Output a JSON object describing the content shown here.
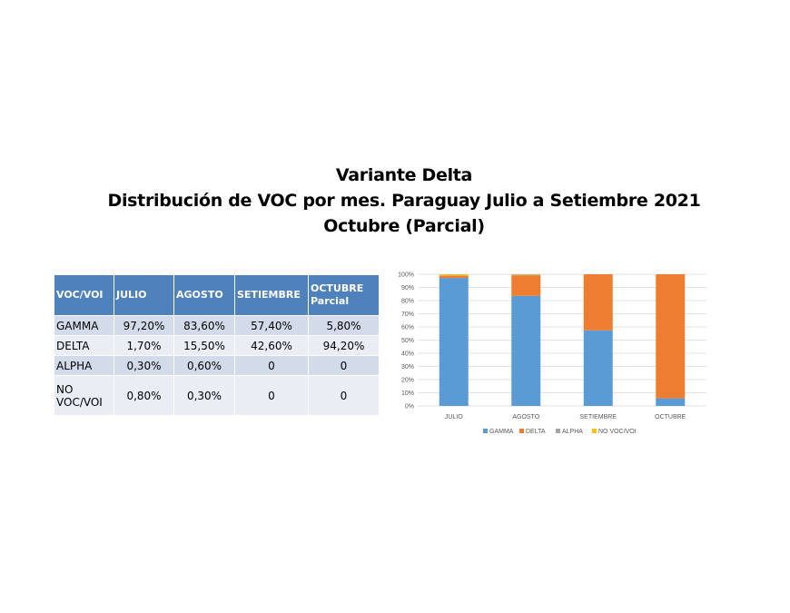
{
  "title": {
    "line1": "Variante Delta",
    "line2": "Distribución de VOC por mes. Paraguay Julio a Setiembre 2021",
    "line3": "Octubre (Parcial)"
  },
  "table": {
    "headers": [
      "VOC/VOI",
      "JULIO",
      "AGOSTO",
      "SETIEMBRE",
      "OCTUBRE Parcial"
    ],
    "rows": [
      [
        "GAMMA",
        "97,20%",
        "83,60%",
        "57,40%",
        "5,80%"
      ],
      [
        "DELTA",
        "1,70%",
        "15,50%",
        "42,60%",
        "94,20%"
      ],
      [
        "ALPHA",
        "0,30%",
        "0,60%",
        "0",
        "0"
      ],
      [
        "NO VOC/VOI",
        "0,80%",
        "0,30%",
        "0",
        "0"
      ]
    ]
  },
  "chart_data": {
    "type": "bar",
    "stacked": true,
    "categories": [
      "JULIO",
      "AGOSTO",
      "SETIEMBRE",
      "OCTUBRE"
    ],
    "series": [
      {
        "name": "GAMMA",
        "values": [
          97.2,
          83.6,
          57.4,
          5.8
        ],
        "color": "#5b9bd5"
      },
      {
        "name": "DELTA",
        "values": [
          1.7,
          15.5,
          42.6,
          94.2
        ],
        "color": "#ed7d31"
      },
      {
        "name": "ALPHA",
        "values": [
          0.3,
          0.6,
          0,
          0
        ],
        "color": "#a5a5a5"
      },
      {
        "name": "NO VOC/VOI",
        "values": [
          0.8,
          0.3,
          0,
          0
        ],
        "color": "#ffc000"
      }
    ],
    "ylim": [
      0,
      100
    ],
    "yticks": [
      "0%",
      "10%",
      "20%",
      "30%",
      "40%",
      "50%",
      "60%",
      "70%",
      "80%",
      "90%",
      "100%"
    ],
    "grid": true,
    "legend_position": "bottom"
  }
}
